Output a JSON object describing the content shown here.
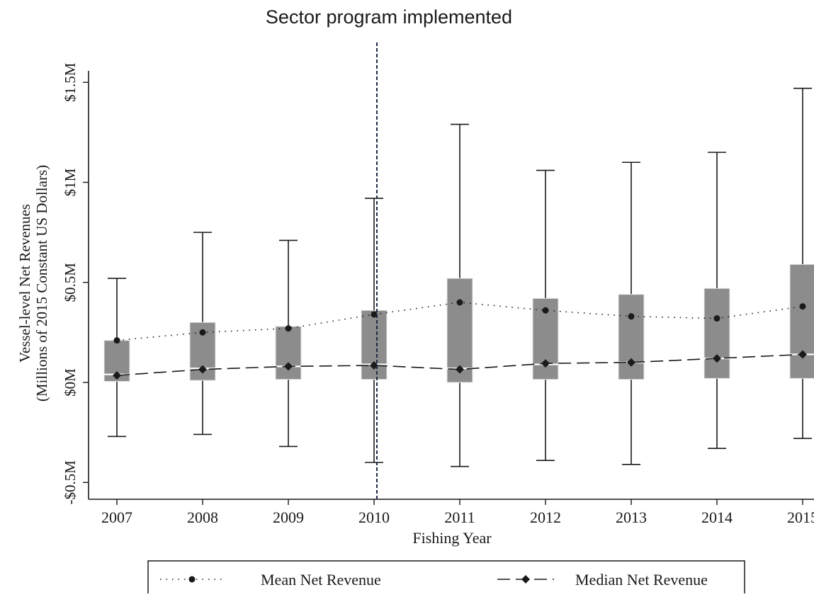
{
  "chart_data": {
    "type": "box",
    "annotation": "Sector program implemented",
    "annotation_at_x": "2010",
    "xlabel": "Fishing Year",
    "ylabel": "Vessel-level Net Revenues",
    "ylabel_sub": "(Millions of 2015 Constant US Dollars)",
    "categories": [
      "2007",
      "2008",
      "2009",
      "2010",
      "2011",
      "2012",
      "2013",
      "2014",
      "2015"
    ],
    "y_ticks": [
      {
        "value": -0.5,
        "label": "-$0.5M"
      },
      {
        "value": 0,
        "label": "$0M"
      },
      {
        "value": 0.5,
        "label": "$0.5M"
      },
      {
        "value": 1,
        "label": "$1M"
      },
      {
        "value": 1.5,
        "label": "$1.5M"
      }
    ],
    "ylim": [
      -0.55,
      1.55
    ],
    "boxes": [
      {
        "whisker_low": -0.27,
        "q1": 0.005,
        "median": 0.04,
        "q3": 0.21,
        "whisker_high": 0.52
      },
      {
        "whisker_low": -0.26,
        "q1": 0.01,
        "median": 0.07,
        "q3": 0.3,
        "whisker_high": 0.75
      },
      {
        "whisker_low": -0.32,
        "q1": 0.015,
        "median": 0.08,
        "q3": 0.28,
        "whisker_high": 0.71
      },
      {
        "whisker_low": -0.4,
        "q1": 0.015,
        "median": 0.09,
        "q3": 0.36,
        "whisker_high": 0.92
      },
      {
        "whisker_low": -0.42,
        "q1": 0.0,
        "median": 0.07,
        "q3": 0.52,
        "whisker_high": 1.29
      },
      {
        "whisker_low": -0.39,
        "q1": 0.015,
        "median": 0.09,
        "q3": 0.42,
        "whisker_high": 1.06
      },
      {
        "whisker_low": -0.41,
        "q1": 0.015,
        "median": 0.1,
        "q3": 0.44,
        "whisker_high": 1.1
      },
      {
        "whisker_low": -0.33,
        "q1": 0.02,
        "median": 0.12,
        "q3": 0.47,
        "whisker_high": 1.15
      },
      {
        "whisker_low": -0.28,
        "q1": 0.02,
        "median": 0.14,
        "q3": 0.59,
        "whisker_high": 1.47
      }
    ],
    "series": [
      {
        "name": "Mean Net Revenue",
        "style": "dotted",
        "marker": "circle",
        "values": [
          0.21,
          0.25,
          0.27,
          0.34,
          0.4,
          0.36,
          0.33,
          0.32,
          0.38
        ]
      },
      {
        "name": "Median Net Revenue",
        "style": "dashed",
        "marker": "diamond",
        "values": [
          0.035,
          0.065,
          0.08,
          0.085,
          0.065,
          0.095,
          0.1,
          0.12,
          0.14
        ]
      }
    ],
    "legend_position": "bottom",
    "colors": {
      "box": "#8c8c8c",
      "ink": "#1a1a1a",
      "median_bar": "#ffffff",
      "vline": "#1f2a44"
    }
  }
}
